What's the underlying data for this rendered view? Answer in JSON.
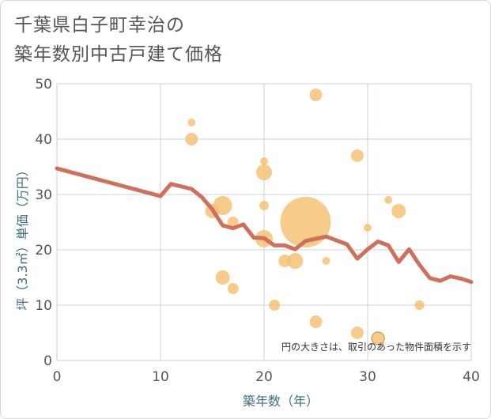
{
  "page": {
    "title_line1": "千葉県白子町幸治の",
    "title_line2": "築年数別中古戸建て価格"
  },
  "chart_data": {
    "type": "scatter",
    "xlabel": "築年数（年）",
    "ylabel": "坪（3.3㎡）単価（万円）",
    "xlim": [
      0,
      40
    ],
    "ylim": [
      0,
      50
    ],
    "x_ticks": [
      0,
      10,
      20,
      30,
      40
    ],
    "y_ticks": [
      0,
      10,
      20,
      30,
      40,
      50
    ],
    "grid": true,
    "note": "円の大きさは、取引のあった物件面積を示す",
    "bubble_color": "#f5c06f",
    "line_color": "#d0705c",
    "bubbles": [
      {
        "x": 25,
        "y": 48,
        "s": 8
      },
      {
        "x": 13,
        "y": 43,
        "s": 5
      },
      {
        "x": 13,
        "y": 40,
        "s": 8
      },
      {
        "x": 29,
        "y": 37,
        "s": 8
      },
      {
        "x": 20,
        "y": 36,
        "s": 5
      },
      {
        "x": 20,
        "y": 34,
        "s": 10
      },
      {
        "x": 32,
        "y": 29,
        "s": 5
      },
      {
        "x": 20,
        "y": 28,
        "s": 6
      },
      {
        "x": 16,
        "y": 28,
        "s": 12
      },
      {
        "x": 15,
        "y": 27,
        "s": 9
      },
      {
        "x": 33,
        "y": 27,
        "s": 9
      },
      {
        "x": 24,
        "y": 25,
        "s": 32
      },
      {
        "x": 17,
        "y": 25,
        "s": 7
      },
      {
        "x": 30,
        "y": 24,
        "s": 5
      },
      {
        "x": 20,
        "y": 22,
        "s": 11
      },
      {
        "x": 22,
        "y": 18,
        "s": 8
      },
      {
        "x": 23,
        "y": 18,
        "s": 10
      },
      {
        "x": 26,
        "y": 18,
        "s": 5
      },
      {
        "x": 16,
        "y": 15,
        "s": 9
      },
      {
        "x": 17,
        "y": 13,
        "s": 7
      },
      {
        "x": 21,
        "y": 10,
        "s": 7
      },
      {
        "x": 35,
        "y": 10,
        "s": 6
      },
      {
        "x": 25,
        "y": 7,
        "s": 8
      },
      {
        "x": 29,
        "y": 5,
        "s": 8
      },
      {
        "x": 31,
        "y": 4,
        "s": 8,
        "outline": true
      }
    ],
    "trend": {
      "x": [
        0,
        10,
        11,
        13,
        14,
        15,
        16,
        17,
        18,
        19,
        20,
        21,
        22,
        23,
        24,
        25,
        26,
        27,
        28,
        29,
        30,
        31,
        32,
        33,
        34,
        35,
        36,
        37,
        38,
        39,
        40
      ],
      "y": [
        34.7,
        29.7,
        31.9,
        31.0,
        29.5,
        27.3,
        24.4,
        23.9,
        24.6,
        22.2,
        22.1,
        20.8,
        20.8,
        20.1,
        21.6,
        22.0,
        22.4,
        21.7,
        21.0,
        18.4,
        20.1,
        21.5,
        20.8,
        17.8,
        20.1,
        17.3,
        14.9,
        14.4,
        15.2,
        14.8,
        14.2
      ]
    }
  }
}
